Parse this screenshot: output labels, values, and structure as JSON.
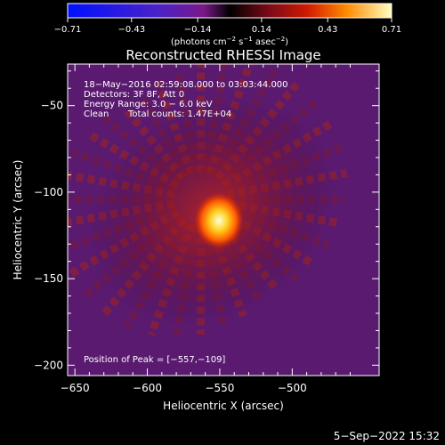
{
  "chart_data": {
    "type": "heatmap",
    "title": "Reconstructed RHESSI Image",
    "xlabel": "Heliocentric X (arcsec)",
    "ylabel": "Heliocentric Y (arcsec)",
    "xlim": [
      -655,
      -440
    ],
    "ylim": [
      -206,
      -26
    ],
    "x_ticks": [
      -650,
      -600,
      -550,
      -500
    ],
    "x_tick_labels": [
      "−650",
      "−600",
      "−550",
      "−500"
    ],
    "y_ticks": [
      -50,
      -100,
      -150,
      -200
    ],
    "y_tick_labels": [
      "−50",
      "−100",
      "−150",
      "−200"
    ],
    "colorbar": {
      "ticks": [
        -0.71,
        -0.43,
        -0.14,
        0.14,
        0.43,
        0.71
      ],
      "tick_labels": [
        "−0.71",
        "−0.43",
        "−0.14",
        "0.14",
        "0.43",
        "0.71"
      ],
      "unit_prefix": "(photons cm",
      "unit_exp1": "−2",
      "unit_mid": " s",
      "unit_exp2": "−1",
      "unit_mid2": " asec",
      "unit_exp3": "−2",
      "unit_suffix": ")"
    },
    "annotations": {
      "line1": "18−May−2016 02:59:08.000 to 03:03:44.000",
      "line2": "Detectors: 3F 8F, Att 0",
      "line3": "Energy Range: 3.0 − 6.0 keV",
      "line4_a": "Clean",
      "line4_b": "Total counts: 1.47E+04",
      "peak": "Position of Peak = [−557,−109]"
    },
    "peak": {
      "x": -557,
      "y": -109
    }
  },
  "footer": {
    "timestamp": "5−Sep−2022 15:32"
  },
  "colors": {
    "background": "#000000",
    "text": "#ffffff"
  }
}
